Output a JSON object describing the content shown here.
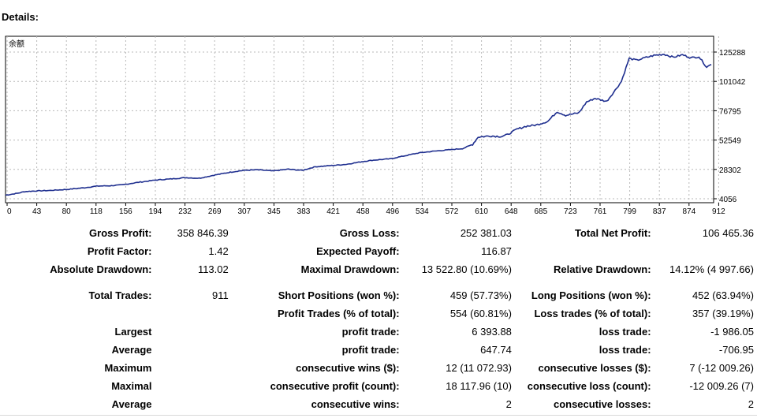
{
  "title": "Details:",
  "chart_data": {
    "type": "line",
    "series_label": "余额",
    "yticks": [
      "125288",
      "101042",
      "76795",
      "52549",
      "28302",
      "4056"
    ],
    "y_values": [
      125288,
      101042,
      76795,
      52549,
      28302,
      4056
    ],
    "xticks": [
      "0",
      "43",
      "80",
      "118",
      "156",
      "194",
      "232",
      "269",
      "307",
      "345",
      "383",
      "421",
      "458",
      "496",
      "534",
      "572",
      "610",
      "648",
      "685",
      "723",
      "761",
      "799",
      "837",
      "874",
      "912"
    ],
    "ylim": [
      4056,
      125288
    ],
    "xlim": [
      0,
      911
    ],
    "grid": true,
    "line_color": "#1f2f8f",
    "balance_points": [
      [
        0,
        7000
      ],
      [
        15,
        8500
      ],
      [
        25,
        10000
      ],
      [
        40,
        10500
      ],
      [
        60,
        11000
      ],
      [
        80,
        11800
      ],
      [
        100,
        13000
      ],
      [
        118,
        14500
      ],
      [
        135,
        14800
      ],
      [
        150,
        15500
      ],
      [
        170,
        17500
      ],
      [
        194,
        19500
      ],
      [
        215,
        20500
      ],
      [
        232,
        21500
      ],
      [
        250,
        21000
      ],
      [
        269,
        23500
      ],
      [
        290,
        26000
      ],
      [
        307,
        27500
      ],
      [
        325,
        28000
      ],
      [
        345,
        27000
      ],
      [
        365,
        28500
      ],
      [
        383,
        27500
      ],
      [
        400,
        30500
      ],
      [
        421,
        31500
      ],
      [
        440,
        32500
      ],
      [
        458,
        34500
      ],
      [
        475,
        36000
      ],
      [
        496,
        37000
      ],
      [
        515,
        39500
      ],
      [
        534,
        42000
      ],
      [
        555,
        43500
      ],
      [
        572,
        44500
      ],
      [
        590,
        45500
      ],
      [
        603,
        49000
      ],
      [
        610,
        55000
      ],
      [
        625,
        56000
      ],
      [
        640,
        55500
      ],
      [
        648,
        57000
      ],
      [
        660,
        61500
      ],
      [
        672,
        64000
      ],
      [
        685,
        65000
      ],
      [
        700,
        68000
      ],
      [
        712,
        76000
      ],
      [
        723,
        73000
      ],
      [
        740,
        75000
      ],
      [
        750,
        84000
      ],
      [
        761,
        87000
      ],
      [
        776,
        84500
      ],
      [
        785,
        92000
      ],
      [
        795,
        101000
      ],
      [
        805,
        120000
      ],
      [
        815,
        118500
      ],
      [
        825,
        120500
      ],
      [
        837,
        122500
      ],
      [
        850,
        123500
      ],
      [
        862,
        121000
      ],
      [
        874,
        123000
      ],
      [
        885,
        120500
      ],
      [
        895,
        121500
      ],
      [
        905,
        113000
      ],
      [
        911,
        115000
      ]
    ]
  },
  "stats": {
    "gross_profit_label": "Gross Profit:",
    "gross_profit": "358 846.39",
    "gross_loss_label": "Gross Loss:",
    "gross_loss": "252 381.03",
    "total_net_profit_label": "Total Net Profit:",
    "total_net_profit": "106 465.36",
    "profit_factor_label": "Profit Factor:",
    "profit_factor": "1.42",
    "expected_payoff_label": "Expected Payoff:",
    "expected_payoff": "116.87",
    "absolute_drawdown_label": "Absolute Drawdown:",
    "absolute_drawdown": "113.02",
    "maximal_drawdown_label": "Maximal Drawdown:",
    "maximal_drawdown": "13 522.80 (10.69%)",
    "relative_drawdown_label": "Relative Drawdown:",
    "relative_drawdown": "14.12% (4 997.66)",
    "total_trades_label": "Total Trades:",
    "total_trades": "911",
    "short_positions_label": "Short Positions (won %):",
    "short_positions": "459 (57.73%)",
    "long_positions_label": "Long Positions (won %):",
    "long_positions": "452 (63.94%)",
    "profit_trades_label": "Profit Trades (% of total):",
    "profit_trades": "554 (60.81%)",
    "loss_trades_label": "Loss trades (% of total):",
    "loss_trades": "357 (39.19%)",
    "largest_label": "Largest",
    "largest_profit_label": "profit trade:",
    "largest_profit": "6 393.88",
    "largest_loss_label": "loss trade:",
    "largest_loss": "-1 986.05",
    "average_label": "Average",
    "average_profit_label": "profit trade:",
    "average_profit": "647.74",
    "average_loss_label": "loss trade:",
    "average_loss": "-706.95",
    "maximum_label": "Maximum",
    "max_consec_wins_label": "consecutive wins ($):",
    "max_consec_wins": "12 (11 072.93)",
    "max_consec_losses_label": "consecutive losses ($):",
    "max_consec_losses": "7 (-12 009.26)",
    "maximal_label": "Maximal",
    "maximal_consec_profit_label": "consecutive profit (count):",
    "maximal_consec_profit": "18 117.96 (10)",
    "maximal_consec_loss_label": "consecutive loss (count):",
    "maximal_consec_loss": "-12 009.26 (7)",
    "average2_label": "Average",
    "avg_consec_wins_label": "consecutive wins:",
    "avg_consec_wins": "2",
    "avg_consec_losses_label": "consecutive losses:",
    "avg_consec_losses": "2"
  }
}
